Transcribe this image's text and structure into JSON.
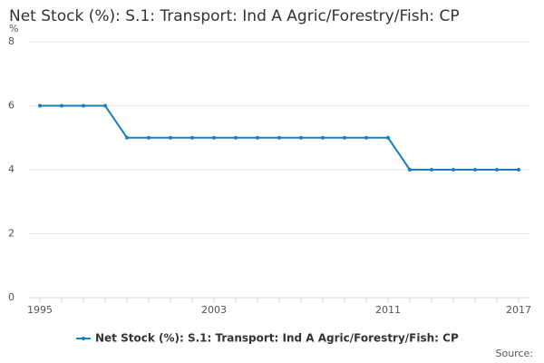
{
  "chart_data": {
    "type": "line",
    "title": "Net Stock (%): S.1: Transport: Ind A Agric/Forestry/Fish: CP",
    "y_label": "%",
    "source": "Source:",
    "x": [
      1995,
      1996,
      1997,
      1998,
      1999,
      2000,
      2001,
      2002,
      2003,
      2004,
      2005,
      2006,
      2007,
      2008,
      2009,
      2010,
      2011,
      2012,
      2013,
      2014,
      2015,
      2016,
      2017
    ],
    "series": [
      {
        "name": "Net Stock (%): S.1: Transport: Ind A Agric/Forestry/Fish: CP",
        "color": "#1a7dbf",
        "values": [
          6,
          6,
          6,
          6,
          5,
          5,
          5,
          5,
          5,
          5,
          5,
          5,
          5,
          5,
          5,
          5,
          5,
          4,
          4,
          4,
          4,
          4,
          4
        ]
      }
    ],
    "xlim": [
      1994.5,
      2017.5
    ],
    "xticks": [
      1995,
      2003,
      2011,
      2017
    ],
    "ylim": [
      0,
      8
    ],
    "yticks": [
      0,
      2,
      4,
      6,
      8
    ],
    "grid": true
  }
}
